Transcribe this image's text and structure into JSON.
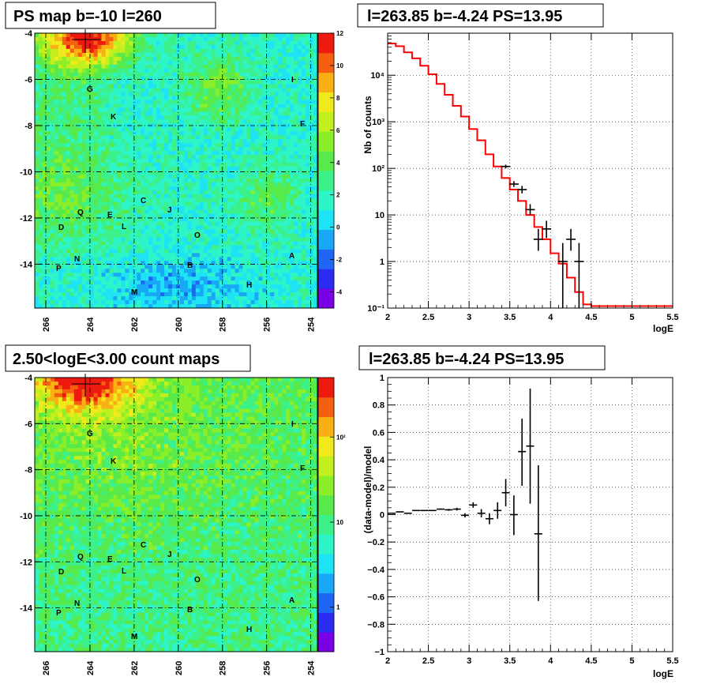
{
  "chart_data": [
    {
      "type": "heatmap",
      "title": "PS map b=-10 l=260",
      "x_ticks": [
        "266",
        "264",
        "262",
        "260",
        "258",
        "256",
        "254"
      ],
      "x_tick_values": [
        266,
        264,
        262,
        260,
        258,
        256,
        254
      ],
      "y_ticks": [
        "-4",
        "-6",
        "-8",
        "-10",
        "-12",
        "-14"
      ],
      "y_tick_values": [
        -4,
        -6,
        -8,
        -10,
        -12,
        -14
      ],
      "xlim": [
        266.5,
        253.7
      ],
      "ylim": [
        -15.9,
        -4
      ],
      "colorbar_ticks": [
        "12",
        "10",
        "8",
        "6",
        "4",
        "2",
        "0",
        "-2",
        "-4"
      ],
      "colorbar_values": [
        12,
        10,
        8,
        6,
        4,
        2,
        0,
        -2,
        -4
      ],
      "colorbar_range": [
        -5,
        12
      ],
      "colors": [
        "#7a00e6",
        "#2a2cf2",
        "#1f66f5",
        "#18a8f5",
        "#1ee3f5",
        "#2ef5c8",
        "#3cf08a",
        "#58ea4a",
        "#8aef28",
        "#c2f01e",
        "#f0ea1c",
        "#f8b014",
        "#f46010",
        "#ee1a10"
      ]
    },
    {
      "type": "line",
      "title": "l=263.85 b=-4.24 PS=13.95",
      "xlabel": "logE",
      "ylabel": "Nb of counts",
      "xlim": [
        2,
        5.5
      ],
      "ylim": [
        0.1,
        80000
      ],
      "yscale": "log",
      "x_ticks": [
        "2",
        "2.5",
        "3",
        "3.5",
        "4",
        "4.5",
        "5",
        "5.5"
      ],
      "x_tick_values": [
        2,
        2.5,
        3,
        3.5,
        4,
        4.5,
        5,
        5.5
      ],
      "y_ticks": [
        "10⁻¹",
        "1",
        "10",
        "10²",
        "10³",
        "10⁴"
      ],
      "y_tick_values": [
        0.1,
        1,
        10,
        100,
        1000,
        10000
      ],
      "grid": true,
      "model_color": "#ff0000",
      "data_color": "#000000",
      "model_steps": [
        [
          2.0,
          2.1,
          48000
        ],
        [
          2.1,
          2.2,
          42000
        ],
        [
          2.2,
          2.3,
          31000
        ],
        [
          2.3,
          2.4,
          23000
        ],
        [
          2.4,
          2.5,
          16000
        ],
        [
          2.5,
          2.6,
          10500
        ],
        [
          2.6,
          2.7,
          6500
        ],
        [
          2.7,
          2.8,
          3800
        ],
        [
          2.8,
          2.9,
          2200
        ],
        [
          2.9,
          3.0,
          1300
        ],
        [
          3.0,
          3.1,
          700
        ],
        [
          3.1,
          3.2,
          400
        ],
        [
          3.2,
          3.3,
          200
        ],
        [
          3.3,
          3.4,
          110
        ],
        [
          3.4,
          3.5,
          62
        ],
        [
          3.5,
          3.6,
          35
        ],
        [
          3.6,
          3.7,
          20
        ],
        [
          3.7,
          3.8,
          10
        ],
        [
          3.8,
          3.9,
          5.5
        ],
        [
          3.9,
          4.0,
          3
        ],
        [
          4.0,
          4.1,
          1.5
        ],
        [
          4.1,
          4.2,
          0.9
        ],
        [
          4.2,
          4.3,
          0.45
        ],
        [
          4.3,
          4.4,
          0.22
        ],
        [
          4.4,
          4.5,
          0.12
        ],
        [
          4.5,
          5.5,
          0.11
        ]
      ],
      "data_points": [
        {
          "x": 3.45,
          "y": 110,
          "lo": 100,
          "hi": 120
        },
        {
          "x": 3.55,
          "y": 46,
          "lo": 40,
          "hi": 53
        },
        {
          "x": 3.65,
          "y": 35,
          "lo": 29,
          "hi": 42
        },
        {
          "x": 3.75,
          "y": 13,
          "lo": 10,
          "hi": 17
        },
        {
          "x": 3.85,
          "y": 3,
          "lo": 1.7,
          "hi": 5
        },
        {
          "x": 3.95,
          "y": 5,
          "lo": 3.2,
          "hi": 7.5
        },
        {
          "x": 4.15,
          "y": 1,
          "lo": 0.1,
          "hi": 2.5
        },
        {
          "x": 4.25,
          "y": 3,
          "lo": 1.7,
          "hi": 5
        },
        {
          "x": 4.35,
          "y": 1,
          "lo": 0.1,
          "hi": 2.5
        }
      ]
    },
    {
      "type": "heatmap",
      "title": "2.50<logE<3.00 count maps",
      "x_ticks": [
        "266",
        "264",
        "262",
        "260",
        "258",
        "256",
        "254"
      ],
      "x_tick_values": [
        266,
        264,
        262,
        260,
        258,
        256,
        254
      ],
      "y_ticks": [
        "-4",
        "-6",
        "-8",
        "-10",
        "-12",
        "-14"
      ],
      "y_tick_values": [
        -4,
        -6,
        -8,
        -10,
        -12,
        -14
      ],
      "xlim": [
        266.5,
        253.7
      ],
      "ylim": [
        -15.9,
        -4
      ],
      "colorbar_scale": "log",
      "colorbar_ticks": [
        "10²",
        "10",
        "1"
      ],
      "colorbar_values": [
        100,
        10,
        1
      ],
      "colorbar_range": [
        0.3,
        500
      ],
      "colors": [
        "#7a00e6",
        "#2a2cf2",
        "#1f66f5",
        "#18a8f5",
        "#1ee3f5",
        "#2ef5c8",
        "#3cf08a",
        "#58ea4a",
        "#8aef28",
        "#c2f01e",
        "#f0ea1c",
        "#f8b014",
        "#f46010",
        "#ee1a10"
      ]
    },
    {
      "type": "scatter",
      "title": "l=263.85 b=-4.24 PS=13.95",
      "xlabel": "logE",
      "ylabel": "(data-model)/model",
      "xlim": [
        2,
        5.5
      ],
      "ylim": [
        -1,
        1
      ],
      "x_ticks": [
        "2",
        "2.5",
        "3",
        "3.5",
        "4",
        "4.5",
        "5",
        "5.5"
      ],
      "x_tick_values": [
        2,
        2.5,
        3,
        3.5,
        4,
        4.5,
        5,
        5.5
      ],
      "y_ticks": [
        "1",
        "0.8",
        "0.6",
        "0.4",
        "0.2",
        "0",
        "−0.2",
        "−0.4",
        "−0.6",
        "−0.8",
        "−1"
      ],
      "y_tick_values": [
        1,
        0.8,
        0.6,
        0.4,
        0.2,
        0,
        -0.2,
        -0.4,
        -0.6,
        -0.8,
        -1
      ],
      "grid": true,
      "data_points": [
        {
          "x": 2.05,
          "y": 0.01,
          "lo": 0.008,
          "hi": 0.012
        },
        {
          "x": 2.15,
          "y": 0.02,
          "lo": 0.018,
          "hi": 0.022
        },
        {
          "x": 2.25,
          "y": 0.01,
          "lo": 0.008,
          "hi": 0.012
        },
        {
          "x": 2.35,
          "y": 0.03,
          "lo": 0.028,
          "hi": 0.032
        },
        {
          "x": 2.45,
          "y": 0.03,
          "lo": 0.027,
          "hi": 0.033
        },
        {
          "x": 2.55,
          "y": 0.03,
          "lo": 0.026,
          "hi": 0.034
        },
        {
          "x": 2.65,
          "y": 0.04,
          "lo": 0.035,
          "hi": 0.045
        },
        {
          "x": 2.75,
          "y": 0.035,
          "lo": 0.028,
          "hi": 0.042
        },
        {
          "x": 2.85,
          "y": 0.04,
          "lo": 0.03,
          "hi": 0.05
        },
        {
          "x": 2.95,
          "y": -0.005,
          "lo": -0.02,
          "hi": 0.01
        },
        {
          "x": 3.05,
          "y": 0.07,
          "lo": 0.05,
          "hi": 0.09
        },
        {
          "x": 3.15,
          "y": 0.01,
          "lo": -0.02,
          "hi": 0.04
        },
        {
          "x": 3.25,
          "y": -0.03,
          "lo": -0.07,
          "hi": 0.01
        },
        {
          "x": 3.35,
          "y": 0.03,
          "lo": -0.03,
          "hi": 0.09
        },
        {
          "x": 3.45,
          "y": 0.16,
          "lo": 0.06,
          "hi": 0.26
        },
        {
          "x": 3.55,
          "y": 0.0,
          "lo": -0.15,
          "hi": 0.14
        },
        {
          "x": 3.65,
          "y": 0.46,
          "lo": 0.21,
          "hi": 0.7
        },
        {
          "x": 3.75,
          "y": 0.5,
          "lo": 0.08,
          "hi": 0.92
        },
        {
          "x": 3.85,
          "y": -0.14,
          "lo": -0.63,
          "hi": 0.36
        }
      ]
    }
  ],
  "source_labels": [
    "G",
    "I",
    "K",
    "F",
    "C",
    "J",
    "Q",
    "E",
    "D",
    "L",
    "O",
    "N",
    "P",
    "B",
    "A",
    "H",
    "M"
  ]
}
